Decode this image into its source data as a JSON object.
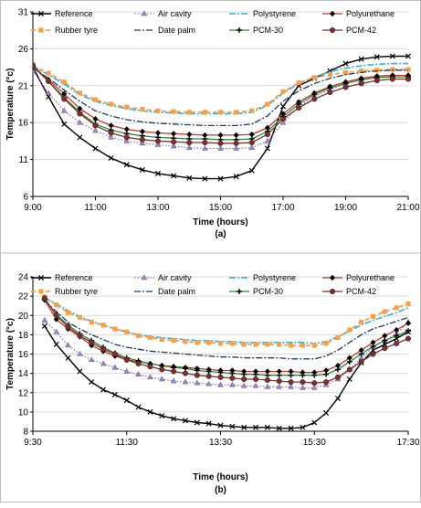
{
  "chart_data": [
    {
      "type": "line",
      "panel_label": "(a)",
      "xlabel": "Time (hours)",
      "ylabel": "Temperature (°c)",
      "x_ticks": [
        "9:00",
        "11:00",
        "13:00",
        "15:00",
        "17:00",
        "19:00",
        "21:00"
      ],
      "x_tick_values": [
        9,
        11,
        13,
        15,
        17,
        19,
        21
      ],
      "y_ticks": [
        6,
        11,
        16,
        21,
        26,
        31
      ],
      "xlim": [
        9,
        21
      ],
      "ylim": [
        6,
        31
      ],
      "grid": "horizontal",
      "legend": "top",
      "x": [
        9.0,
        9.5,
        10.0,
        10.5,
        11.0,
        11.5,
        12.0,
        12.5,
        13.0,
        13.5,
        14.0,
        14.5,
        15.0,
        15.5,
        16.0,
        16.5,
        17.0,
        17.5,
        18.0,
        18.5,
        19.0,
        19.5,
        20.0,
        20.5,
        21.0
      ],
      "series": [
        {
          "name": "Reference",
          "values": [
            23.5,
            19.5,
            15.8,
            14.0,
            12.5,
            11.2,
            10.3,
            9.6,
            9.1,
            8.8,
            8.5,
            8.4,
            8.4,
            8.7,
            9.5,
            12.5,
            18.2,
            21.0,
            22.0,
            23.0,
            24.0,
            24.6,
            24.9,
            25.0,
            25.0
          ]
        },
        {
          "name": "Air cavity",
          "values": [
            23.0,
            20.0,
            17.6,
            16.0,
            14.9,
            14.0,
            13.5,
            13.2,
            13.0,
            12.8,
            12.6,
            12.5,
            12.5,
            12.5,
            12.6,
            13.5,
            16.0,
            18.2,
            19.5,
            20.5,
            21.3,
            21.8,
            22.2,
            22.4,
            22.4
          ]
        },
        {
          "name": "Polystyrene",
          "values": [
            23.6,
            22.5,
            21.2,
            19.8,
            18.9,
            18.3,
            17.9,
            17.6,
            17.4,
            17.3,
            17.2,
            17.2,
            17.2,
            17.2,
            17.4,
            18.3,
            20.0,
            21.3,
            22.2,
            22.9,
            23.4,
            23.7,
            23.9,
            24.0,
            24.0
          ]
        },
        {
          "name": "Polyurethane",
          "values": [
            23.5,
            21.8,
            19.9,
            17.9,
            16.5,
            15.6,
            15.1,
            14.8,
            14.6,
            14.5,
            14.4,
            14.3,
            14.3,
            14.3,
            14.4,
            15.3,
            17.2,
            18.8,
            20.0,
            20.9,
            21.5,
            22.0,
            22.3,
            22.4,
            22.4
          ]
        },
        {
          "name": "Rubber tyre",
          "values": [
            23.7,
            22.7,
            21.5,
            20.0,
            19.1,
            18.5,
            18.1,
            17.8,
            17.6,
            17.5,
            17.4,
            17.4,
            17.4,
            17.4,
            17.6,
            18.5,
            20.2,
            21.4,
            22.1,
            22.5,
            22.8,
            23.0,
            23.1,
            23.2,
            23.2
          ]
        },
        {
          "name": "Date palm",
          "values": [
            23.4,
            22.0,
            20.4,
            18.9,
            17.6,
            16.9,
            16.4,
            16.1,
            15.9,
            15.8,
            15.7,
            15.6,
            15.6,
            15.6,
            15.8,
            16.9,
            18.9,
            20.3,
            21.3,
            22.0,
            22.5,
            22.8,
            23.0,
            23.1,
            23.1
          ]
        },
        {
          "name": "PCM-30",
          "values": [
            23.6,
            21.6,
            19.4,
            17.4,
            15.8,
            15.0,
            14.5,
            14.2,
            14.0,
            13.9,
            13.8,
            13.8,
            13.7,
            13.7,
            13.8,
            14.8,
            16.8,
            18.5,
            19.8,
            20.7,
            21.3,
            21.8,
            22.1,
            22.2,
            22.2
          ]
        },
        {
          "name": "PCM-42",
          "values": [
            23.8,
            21.6,
            19.2,
            17.2,
            15.6,
            14.6,
            14.0,
            13.7,
            13.5,
            13.4,
            13.3,
            13.3,
            13.2,
            13.2,
            13.3,
            14.4,
            16.5,
            18.0,
            19.2,
            20.1,
            20.8,
            21.3,
            21.7,
            21.9,
            21.9
          ]
        }
      ]
    },
    {
      "type": "line",
      "panel_label": "(b)",
      "xlabel": "Time (hours)",
      "ylabel": "Temperature (°c)",
      "x_ticks": [
        "9:30",
        "11:30",
        "13:30",
        "15:30",
        "17:30"
      ],
      "x_tick_values": [
        9.5,
        11.5,
        13.5,
        15.5,
        17.5
      ],
      "y_ticks": [
        8,
        10,
        12,
        14,
        16,
        18,
        20,
        22,
        24
      ],
      "xlim": [
        9.5,
        17.5
      ],
      "ylim": [
        8,
        24
      ],
      "grid": "horizontal",
      "legend": "top",
      "x": [
        9.75,
        10.0,
        10.25,
        10.5,
        10.75,
        11.0,
        11.25,
        11.5,
        11.75,
        12.0,
        12.25,
        12.5,
        12.75,
        13.0,
        13.25,
        13.5,
        13.75,
        14.0,
        14.25,
        14.5,
        14.75,
        15.0,
        15.25,
        15.5,
        15.75,
        16.0,
        16.25,
        16.5,
        16.75,
        17.0,
        17.25,
        17.5
      ],
      "series": [
        {
          "name": "Reference",
          "values": [
            18.9,
            17.0,
            15.6,
            14.2,
            13.1,
            12.3,
            11.8,
            11.2,
            10.5,
            10.0,
            9.6,
            9.3,
            9.1,
            8.9,
            8.8,
            8.6,
            8.5,
            8.4,
            8.4,
            8.4,
            8.3,
            8.3,
            8.4,
            8.9,
            9.9,
            11.4,
            13.4,
            15.1,
            16.4,
            17.0,
            17.6,
            18.3
          ]
        },
        {
          "name": "Air cavity",
          "values": [
            19.5,
            18.3,
            16.9,
            16.0,
            15.4,
            15.0,
            14.6,
            14.2,
            13.9,
            13.6,
            13.4,
            13.2,
            13.1,
            13.0,
            12.9,
            12.8,
            12.8,
            12.7,
            12.7,
            12.6,
            12.6,
            12.6,
            12.5,
            12.5,
            12.8,
            13.4,
            14.4,
            15.6,
            16.7,
            17.4,
            18.1,
            19.3
          ]
        },
        {
          "name": "Polystyrene",
          "values": [
            21.8,
            21.2,
            20.5,
            19.9,
            19.4,
            19.0,
            18.6,
            18.3,
            18.0,
            17.8,
            17.7,
            17.6,
            17.5,
            17.4,
            17.4,
            17.3,
            17.3,
            17.2,
            17.2,
            17.2,
            17.2,
            17.2,
            17.2,
            17.1,
            17.3,
            17.8,
            18.4,
            19.0,
            19.5,
            19.9,
            20.3,
            20.8
          ]
        },
        {
          "name": "Polyurethane",
          "values": [
            21.6,
            19.6,
            18.6,
            17.8,
            16.9,
            16.3,
            15.8,
            15.4,
            15.2,
            15.0,
            14.8,
            14.7,
            14.6,
            14.5,
            14.4,
            14.3,
            14.3,
            14.2,
            14.2,
            14.2,
            14.2,
            14.2,
            14.1,
            14.1,
            14.3,
            14.8,
            15.6,
            16.4,
            17.2,
            17.9,
            18.5,
            19.2
          ]
        },
        {
          "name": "Rubber tyre",
          "values": [
            21.9,
            21.1,
            20.3,
            19.8,
            19.3,
            19.0,
            18.6,
            18.3,
            17.9,
            17.7,
            17.5,
            17.4,
            17.3,
            17.2,
            17.2,
            17.1,
            17.1,
            17.0,
            17.0,
            17.0,
            17.0,
            16.9,
            16.9,
            16.9,
            17.1,
            17.7,
            18.5,
            19.3,
            19.9,
            20.4,
            20.8,
            21.2
          ]
        },
        {
          "name": "Date palm",
          "values": [
            21.5,
            20.4,
            19.3,
            18.6,
            18.0,
            17.5,
            17.0,
            16.7,
            16.5,
            16.3,
            16.2,
            16.1,
            16.0,
            15.9,
            15.8,
            15.7,
            15.7,
            15.6,
            15.6,
            15.6,
            15.6,
            15.5,
            15.5,
            15.5,
            15.8,
            16.4,
            17.2,
            18.0,
            18.6,
            19.0,
            19.4,
            19.8
          ]
        },
        {
          "name": "PCM-30",
          "values": [
            21.7,
            20.1,
            19.0,
            18.1,
            17.4,
            16.7,
            16.1,
            15.6,
            15.3,
            15.0,
            14.8,
            14.6,
            14.5,
            14.3,
            14.2,
            14.1,
            14.0,
            13.9,
            13.9,
            13.8,
            13.8,
            13.8,
            13.8,
            13.8,
            13.9,
            14.4,
            15.2,
            16.0,
            16.8,
            17.4,
            17.9,
            18.4
          ]
        },
        {
          "name": "PCM-42",
          "values": [
            21.8,
            20.0,
            18.8,
            17.9,
            17.2,
            16.5,
            16.0,
            15.4,
            15.0,
            14.7,
            14.4,
            14.2,
            14.0,
            13.8,
            13.7,
            13.6,
            13.5,
            13.4,
            13.4,
            13.3,
            13.2,
            13.1,
            13.1,
            13.0,
            13.1,
            13.6,
            14.4,
            15.2,
            16.0,
            16.6,
            17.1,
            17.6
          ]
        }
      ]
    }
  ],
  "styles": [
    {
      "color": "#000000",
      "dash": "",
      "marker": "x",
      "width": 1.4
    },
    {
      "color": "#7f5fa6",
      "dash": "1.5,2",
      "marker": "triangle",
      "width": 1.1
    },
    {
      "color": "#31b0d8",
      "dash": "7,2,2,2",
      "marker": "none",
      "width": 1.6
    },
    {
      "color": "#c0392b",
      "dash": "",
      "marker": "diamond-black",
      "width": 1.3
    },
    {
      "color": "#f5a14a",
      "dash": "5,3",
      "marker": "square",
      "width": 1.8
    },
    {
      "color": "#1f3a5f",
      "dash": "7,2,2,2",
      "marker": "none",
      "width": 1.3
    },
    {
      "color": "#2e8b3e",
      "dash": "",
      "marker": "plus",
      "width": 1.3
    },
    {
      "color": "#7b3030",
      "dash": "",
      "marker": "circle",
      "width": 1.3
    }
  ]
}
